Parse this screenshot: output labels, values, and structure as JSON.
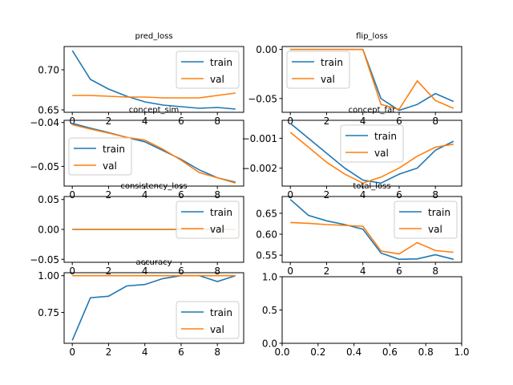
{
  "colors": {
    "train": "#1f77b4",
    "val": "#ff7f0e"
  },
  "chart_data": [
    {
      "type": "line",
      "title": "pred_loss",
      "x": [
        0,
        1,
        2,
        3,
        4,
        5,
        6,
        7,
        8,
        9
      ],
      "series": [
        {
          "name": "train",
          "values": [
            0.724,
            0.688,
            0.676,
            0.667,
            0.66,
            0.656,
            0.654,
            0.652,
            0.653,
            0.651
          ]
        },
        {
          "name": "val",
          "values": [
            0.668,
            0.668,
            0.667,
            0.666,
            0.666,
            0.665,
            0.665,
            0.665,
            0.668,
            0.671
          ]
        }
      ],
      "xlim": [
        -0.45,
        9.45
      ],
      "ylim": [
        0.647,
        0.729
      ],
      "xticks": [
        0,
        2,
        4,
        6,
        8
      ],
      "yticks": [
        0.65,
        0.7
      ],
      "ytick_labels": [
        "0.65",
        "0.70"
      ],
      "legend": "upper right"
    },
    {
      "type": "line",
      "title": "flip_loss",
      "x": [
        0,
        1,
        2,
        3,
        4,
        5,
        6,
        7,
        8,
        9
      ],
      "series": [
        {
          "name": "train",
          "values": [
            0.0,
            0.0,
            0.0,
            0.0,
            0.0,
            -0.05,
            -0.062,
            -0.056,
            -0.045,
            -0.053
          ]
        },
        {
          "name": "val",
          "values": [
            0.0,
            0.0,
            0.0,
            0.0,
            0.0,
            -0.056,
            -0.061,
            -0.032,
            -0.052,
            -0.06
          ]
        }
      ],
      "xlim": [
        -0.45,
        9.45
      ],
      "ylim": [
        -0.064,
        0.003
      ],
      "xticks": [
        0,
        2,
        4,
        6,
        8
      ],
      "yticks": [
        0.0,
        -0.05
      ],
      "ytick_labels": [
        "0.00",
        "−0.05"
      ],
      "legend": "upper left"
    },
    {
      "type": "line",
      "title": "concept_sim",
      "x": [
        0,
        1,
        2,
        3,
        4,
        5,
        6,
        7,
        8,
        9
      ],
      "series": [
        {
          "name": "train",
          "values": [
            -0.0402,
            -0.0413,
            -0.0423,
            -0.0434,
            -0.0444,
            -0.0464,
            -0.0484,
            -0.0508,
            -0.0526,
            -0.0536
          ]
        },
        {
          "name": "val",
          "values": [
            -0.0405,
            -0.0415,
            -0.0424,
            -0.0434,
            -0.044,
            -0.0461,
            -0.0486,
            -0.0514,
            -0.0526,
            -0.0538
          ]
        }
      ],
      "xlim": [
        -0.45,
        9.45
      ],
      "ylim": [
        -0.0545,
        -0.0395
      ],
      "xticks": [
        0,
        2,
        4,
        6,
        8
      ],
      "yticks": [
        -0.04,
        -0.05
      ],
      "ytick_labels": [
        "−0.04",
        "−0.05"
      ],
      "legend": "center left"
    },
    {
      "type": "line",
      "title": "concept_far",
      "x": [
        0,
        1,
        2,
        3,
        4,
        5,
        6,
        7,
        8,
        9
      ],
      "series": [
        {
          "name": "train",
          "values": [
            -0.0005,
            -0.001,
            -0.0015,
            -0.002,
            -0.0024,
            -0.0025,
            -0.0022,
            -0.002,
            -0.0014,
            -0.0011
          ]
        },
        {
          "name": "val",
          "values": [
            -0.0008,
            -0.0013,
            -0.0018,
            -0.0022,
            -0.0025,
            -0.0023,
            -0.002,
            -0.0016,
            -0.0013,
            -0.0012
          ]
        }
      ],
      "xlim": [
        -0.45,
        9.45
      ],
      "ylim": [
        -0.0026,
        -0.0004
      ],
      "xticks": [
        0,
        2,
        4,
        6,
        8
      ],
      "yticks": [
        -0.001,
        -0.002
      ],
      "ytick_labels": [
        "−0.001",
        "−0.002"
      ],
      "legend": "upper center"
    },
    {
      "type": "line",
      "title": "consistency_loss",
      "x": [
        0,
        1,
        2,
        3,
        4,
        5,
        6,
        7,
        8,
        9
      ],
      "series": [
        {
          "name": "train",
          "values": [
            0,
            0,
            0,
            0,
            0,
            0,
            0,
            0,
            0,
            0
          ]
        },
        {
          "name": "val",
          "values": [
            0,
            0,
            0,
            0,
            0,
            0,
            0,
            0,
            0,
            0
          ]
        }
      ],
      "xlim": [
        -0.45,
        9.45
      ],
      "ylim": [
        -0.055,
        0.055
      ],
      "xticks": [
        0,
        2,
        4,
        6,
        8
      ],
      "yticks": [
        0.05,
        0.0,
        -0.05
      ],
      "ytick_labels": [
        "0.05",
        "0.00",
        "−0.05"
      ],
      "legend": "upper right"
    },
    {
      "type": "line",
      "title": "total_loss",
      "x": [
        0,
        1,
        2,
        3,
        4,
        5,
        6,
        7,
        8,
        9
      ],
      "series": [
        {
          "name": "train",
          "values": [
            0.683,
            0.645,
            0.632,
            0.623,
            0.612,
            0.555,
            0.54,
            0.541,
            0.551,
            0.54
          ]
        },
        {
          "name": "val",
          "values": [
            0.628,
            0.626,
            0.623,
            0.621,
            0.619,
            0.56,
            0.553,
            0.58,
            0.561,
            0.557
          ]
        }
      ],
      "xlim": [
        -0.45,
        9.45
      ],
      "ylim": [
        0.533,
        0.69
      ],
      "xticks": [
        0,
        2,
        4,
        6,
        8
      ],
      "yticks": [
        0.55,
        0.6,
        0.65
      ],
      "ytick_labels": [
        "0.55",
        "0.60",
        "0.65"
      ],
      "legend": "upper right"
    },
    {
      "type": "line",
      "title": "accuracy",
      "x": [
        0,
        1,
        2,
        3,
        4,
        5,
        6,
        7,
        8,
        9
      ],
      "series": [
        {
          "name": "train",
          "values": [
            0.56,
            0.85,
            0.86,
            0.93,
            0.94,
            0.98,
            1.0,
            1.0,
            0.96,
            1.0
          ]
        },
        {
          "name": "val",
          "values": [
            1.0,
            1.0,
            1.0,
            1.0,
            1.0,
            1.0,
            1.0,
            1.0,
            1.0,
            1.0
          ]
        }
      ],
      "xlim": [
        -0.45,
        9.45
      ],
      "ylim": [
        0.54,
        1.02
      ],
      "xticks": [
        0,
        2,
        4,
        6,
        8
      ],
      "yticks": [
        0.75,
        1.0
      ],
      "ytick_labels": [
        "0.75",
        "1.00"
      ],
      "legend": "lower right"
    },
    {
      "type": "line",
      "title": "",
      "x": [],
      "series": [],
      "xlim": [
        0,
        1
      ],
      "ylim": [
        0,
        1
      ],
      "xticks": [
        0,
        0.2,
        0.4,
        0.6,
        0.8,
        1.0
      ],
      "xtick_labels": [
        "0.0",
        "0.2",
        "0.4",
        "0.6",
        "0.8",
        "1.0"
      ],
      "yticks": [
        0,
        0.5,
        1.0
      ],
      "ytick_labels": [
        "0.0",
        "0.5",
        "1.0"
      ],
      "legend": "none"
    }
  ]
}
